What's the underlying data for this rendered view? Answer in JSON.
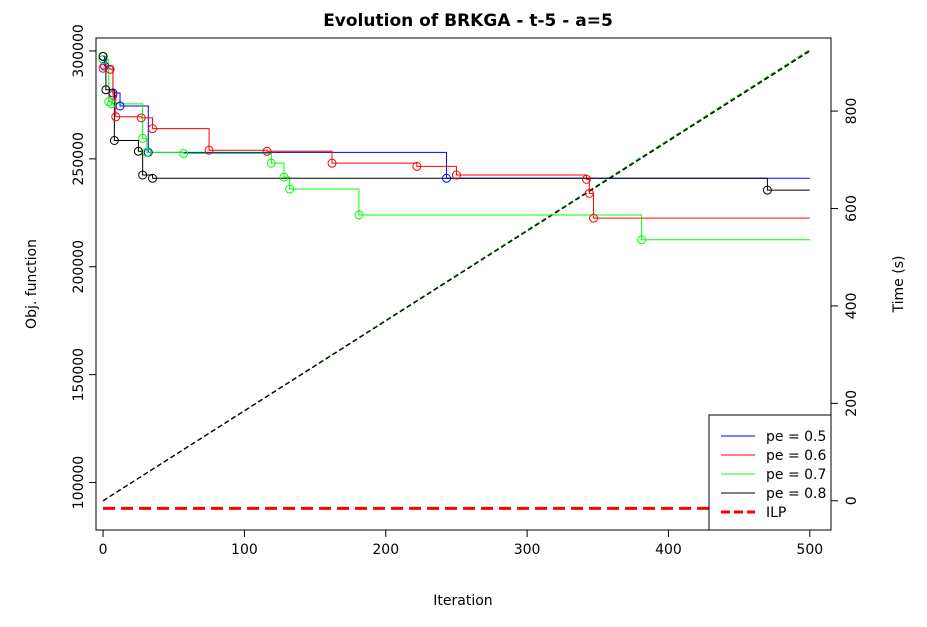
{
  "chart_data": {
    "type": "line",
    "title": "Evolution of BRKGA - t-5 - a=5",
    "xlabel": "Iteration",
    "ylabel": "Obj. function",
    "ylabel_right": "Time (s)",
    "xlim": [
      -5,
      515
    ],
    "ylim": [
      78000,
      306000
    ],
    "y2lim": [
      -60,
      950
    ],
    "xticks": [
      0,
      100,
      200,
      300,
      400,
      500
    ],
    "yticks": [
      100000,
      150000,
      200000,
      250000,
      300000
    ],
    "y2ticks": [
      0,
      200,
      400,
      600,
      800
    ],
    "legend_position": "bottom-right",
    "grid": false,
    "series": [
      {
        "name": "pe = 0.5",
        "color": "#0000ff",
        "style": "step",
        "points": [
          [
            0,
            297500
          ],
          [
            1,
            293000
          ],
          [
            7,
            280500
          ],
          [
            12,
            274500
          ],
          [
            32,
            253000
          ],
          [
            243,
            241000
          ],
          [
            500,
            241000
          ]
        ]
      },
      {
        "name": "pe = 0.6",
        "color": "#ff0000",
        "style": "step",
        "points": [
          [
            0,
            292000
          ],
          [
            5,
            291500
          ],
          [
            7,
            279500
          ],
          [
            9,
            269500
          ],
          [
            27,
            269000
          ],
          [
            35,
            264000
          ],
          [
            75,
            254000
          ],
          [
            116,
            253500
          ],
          [
            162,
            248000
          ],
          [
            222,
            246500
          ],
          [
            250,
            242500
          ],
          [
            342,
            240500
          ],
          [
            344,
            234000
          ],
          [
            347,
            222500
          ],
          [
            500,
            222500
          ]
        ]
      },
      {
        "name": "pe = 0.7",
        "color": "#00ff00",
        "style": "step",
        "points": [
          [
            0,
            296000
          ],
          [
            4,
            276500
          ],
          [
            6,
            275500
          ],
          [
            28,
            259500
          ],
          [
            31,
            253000
          ],
          [
            57,
            252500
          ],
          [
            119,
            248000
          ],
          [
            128,
            241500
          ],
          [
            132,
            236000
          ],
          [
            181,
            224000
          ],
          [
            381,
            212500
          ],
          [
            500,
            212500
          ]
        ]
      },
      {
        "name": "pe = 0.8",
        "color": "#000000",
        "style": "step",
        "points": [
          [
            0,
            297500
          ],
          [
            2,
            282000
          ],
          [
            8,
            258500
          ],
          [
            25,
            253500
          ],
          [
            28,
            242500
          ],
          [
            35,
            241000
          ],
          [
            470,
            235500
          ],
          [
            500,
            235500
          ]
        ]
      },
      {
        "name": "ILP",
        "color": "#ff0000",
        "style": "dashed-thick",
        "points": [
          [
            0,
            88000
          ],
          [
            500,
            88000
          ]
        ]
      }
    ],
    "time_series": [
      {
        "name": "time pe = 0.5",
        "color": "#0000ff",
        "points": [
          [
            0,
            0
          ],
          [
            500,
            925
          ]
        ]
      },
      {
        "name": "time pe = 0.6",
        "color": "#ff0000",
        "points": [
          [
            0,
            0
          ],
          [
            500,
            924
          ]
        ]
      },
      {
        "name": "time pe = 0.7",
        "color": "#00aa00",
        "points": [
          [
            0,
            0
          ],
          [
            500,
            926
          ]
        ]
      },
      {
        "name": "time pe = 0.8",
        "color": "#000000",
        "points": [
          [
            0,
            0
          ],
          [
            500,
            923
          ]
        ]
      }
    ]
  }
}
